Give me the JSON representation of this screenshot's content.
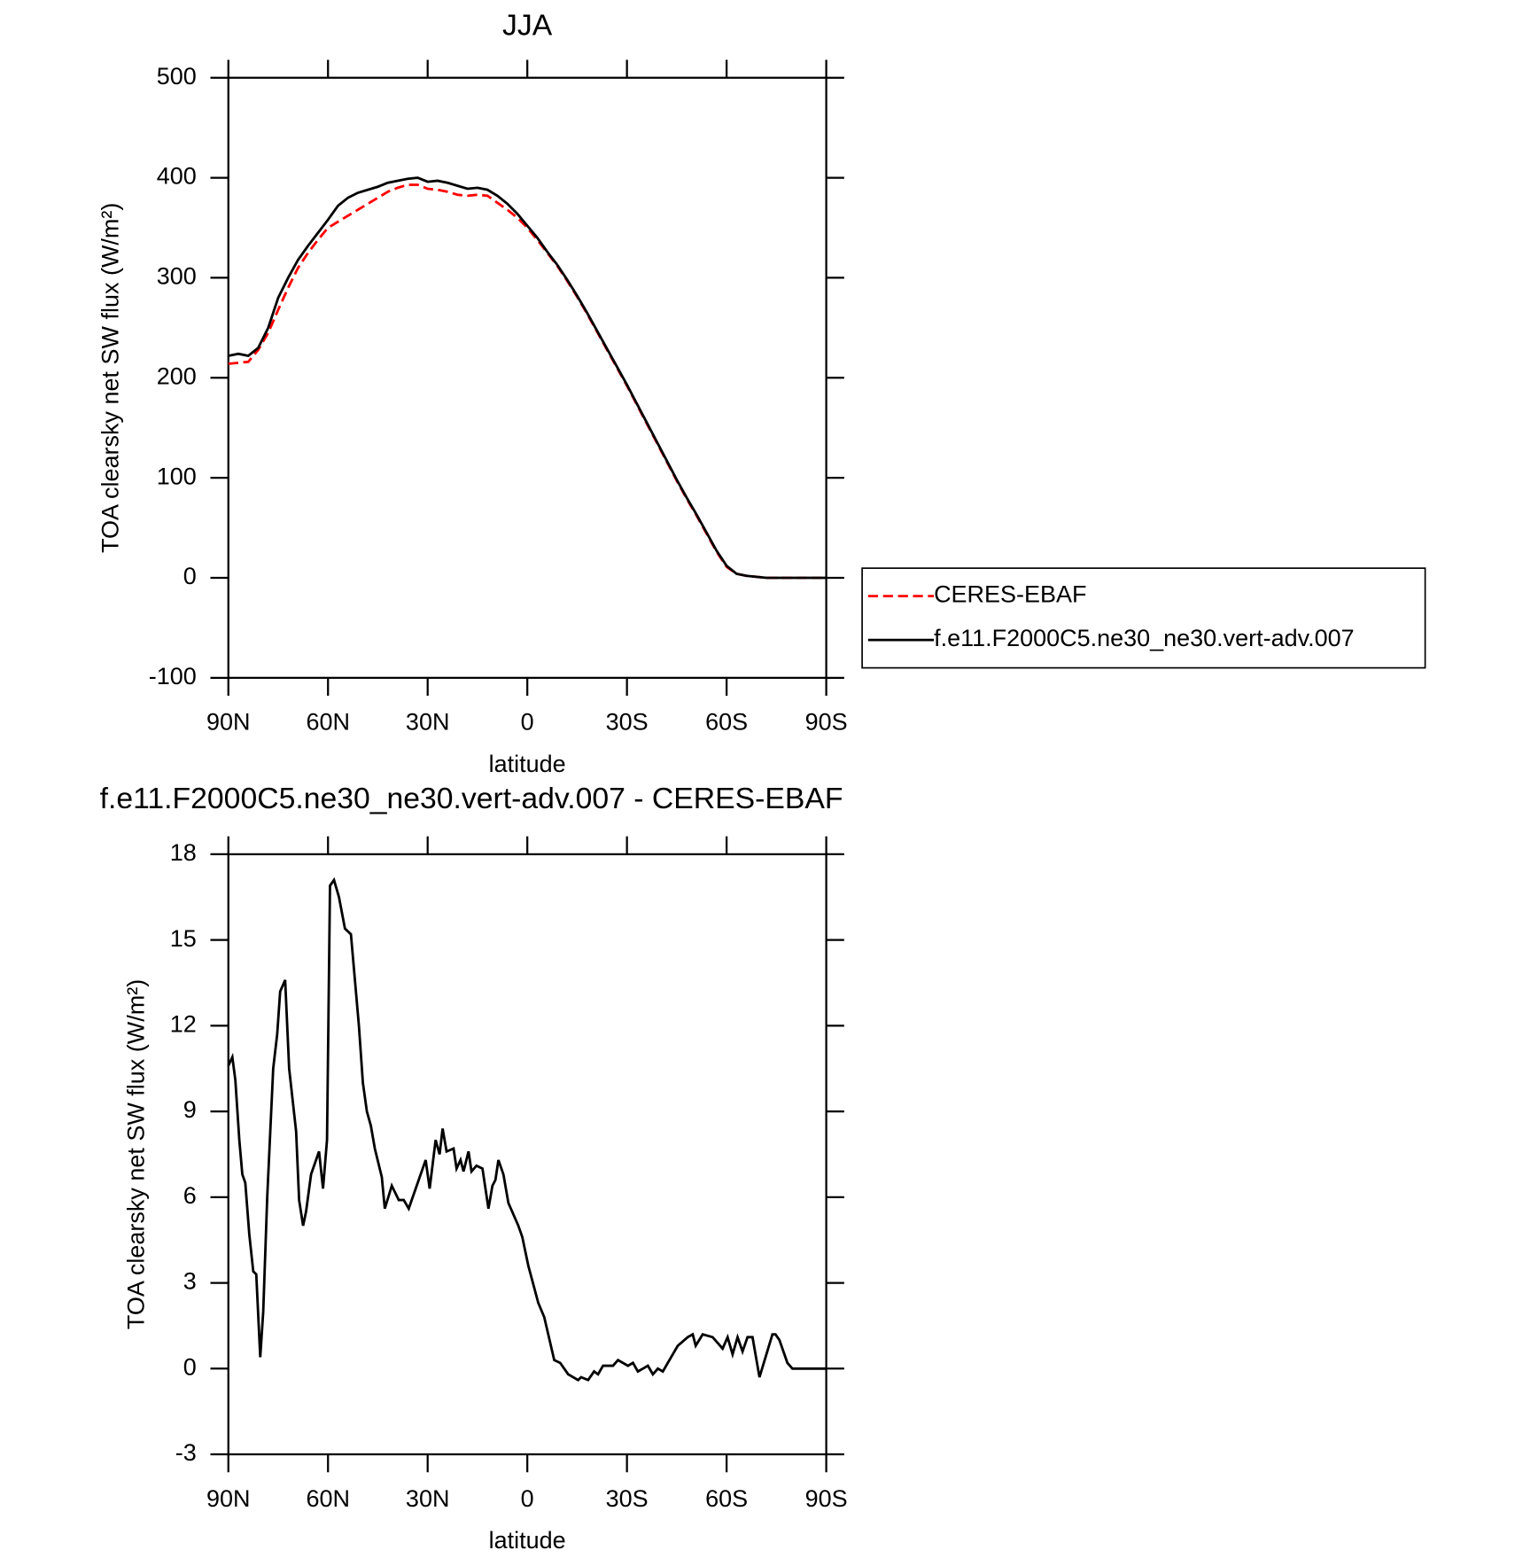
{
  "chart_data": [
    {
      "type": "line",
      "title": "JJA",
      "x_label": "latitude",
      "y_label": "TOA clearsky net SW flux (W/m²)",
      "xlim": [
        90,
        -90
      ],
      "ylim": [
        -100,
        500
      ],
      "xticks": [
        {
          "value": 90,
          "label": "90N"
        },
        {
          "value": 60,
          "label": "60N"
        },
        {
          "value": 30,
          "label": "30N"
        },
        0,
        {
          "value": -30,
          "label": "30S"
        },
        {
          "value": -60,
          "label": "60S"
        },
        {
          "value": -90,
          "label": "90S"
        }
      ],
      "yticks": [
        -100,
        0,
        100,
        200,
        300,
        400,
        500
      ],
      "legend": "right",
      "x": [
        90,
        87,
        84,
        81,
        78,
        75,
        72,
        69,
        66,
        63,
        60,
        57,
        54,
        51,
        48,
        45,
        42,
        39,
        36,
        33,
        30,
        27,
        24,
        21,
        18,
        15,
        12,
        9,
        6,
        3,
        0,
        -3,
        -6,
        -9,
        -12,
        -15,
        -18,
        -21,
        -24,
        -27,
        -30,
        -33,
        -36,
        -39,
        -42,
        -45,
        -48,
        -51,
        -54,
        -57,
        -60,
        -63,
        -66,
        -69,
        -72,
        -75,
        -78,
        -81,
        -84,
        -87,
        -90
      ],
      "series": [
        {
          "name": "CERES-EBAF",
          "color": "#ff0000",
          "style": "dashed",
          "values": [
            214,
            215,
            216,
            228,
            245,
            268,
            290,
            310,
            325,
            338,
            350,
            356,
            362,
            368,
            374,
            380,
            386,
            390,
            393,
            393,
            389,
            388,
            386,
            383,
            382,
            383,
            382,
            375,
            368,
            360,
            350,
            338,
            325,
            312,
            297,
            281,
            264,
            246,
            228,
            210,
            192,
            173,
            154,
            135,
            116,
            97,
            79,
            62,
            44,
            26,
            11,
            4,
            2,
            1,
            0,
            0,
            0,
            0,
            0,
            0,
            0
          ]
        },
        {
          "name": "f.e11.F2000C5.ne30_ne30.vert-adv.007",
          "color": "#000000",
          "style": "solid",
          "values": [
            222,
            224,
            222,
            230,
            250,
            280,
            300,
            318,
            332,
            345,
            358,
            372,
            380,
            385,
            388,
            391,
            395,
            397,
            399,
            400,
            396,
            397,
            395,
            392,
            389,
            390,
            388,
            382,
            374,
            364,
            352,
            340,
            326,
            313,
            298,
            282,
            265,
            247,
            229,
            211,
            193,
            174,
            155,
            136,
            117,
            98,
            80,
            63,
            45,
            27,
            12,
            4,
            2,
            1,
            0,
            0,
            0,
            0,
            0,
            0,
            0
          ]
        }
      ]
    },
    {
      "type": "line",
      "title": "f.e11.F2000C5.ne30_ne30.vert-adv.007 - CERES-EBAF",
      "x_label": "latitude",
      "y_label": "TOA clearsky net SW flux (W/m²)",
      "xlim": [
        90,
        -90
      ],
      "ylim": [
        -3,
        18
      ],
      "xticks": [
        {
          "value": 90,
          "label": "90N"
        },
        {
          "value": 60,
          "label": "60N"
        },
        {
          "value": 30,
          "label": "30N"
        },
        0,
        {
          "value": -30,
          "label": "30S"
        },
        {
          "value": -60,
          "label": "60S"
        },
        {
          "value": -90,
          "label": "90S"
        }
      ],
      "yticks": [
        -3,
        0,
        3,
        6,
        9,
        12,
        15,
        18
      ],
      "x": [
        90,
        88.8,
        87.9,
        86.7,
        85.8,
        84.9,
        83.7,
        82.5,
        81.6,
        80.4,
        79.5,
        78.3,
        76.5,
        75.3,
        74.4,
        72.9,
        71.7,
        69.6,
        68.7,
        67.5,
        66.6,
        65.1,
        62.7,
        61.5,
        60.3,
        59.4,
        58.2,
        56.7,
        54.9,
        53.1,
        50.7,
        49.5,
        48.3,
        47.1,
        45.9,
        43.8,
        42.9,
        40.8,
        38.7,
        37.2,
        35.7,
        32.7,
        30.6,
        29.4,
        27.6,
        26.4,
        25.5,
        24.3,
        22.2,
        21.3,
        20.1,
        19.2,
        17.7,
        16.8,
        15.3,
        13.5,
        11.7,
        10.5,
        9.6,
        8.7,
        7.2,
        5.7,
        2.7,
        1.5,
        -0.3,
        -3.3,
        -5.1,
        -6.3,
        -8.1,
        -9.9,
        -12.3,
        -15.3,
        -16.2,
        -18.3,
        -20.1,
        -21.3,
        -22.8,
        -25.8,
        -27.3,
        -30.3,
        -31.8,
        -33.3,
        -34.8,
        -36.3,
        -37.8,
        -39.3,
        -40.8,
        -42.3,
        -45.3,
        -48.3,
        -49.8,
        -50.7,
        -52.8,
        -55.8,
        -58.8,
        -60.3,
        -61.8,
        -63.3,
        -64.8,
        -66.3,
        -67.8,
        -69.9,
        -73.8,
        -74.7,
        -75.9,
        -78.3,
        -79.8,
        -90
      ],
      "color": "#000000",
      "values": [
        10.6,
        10.9,
        10.1,
        8.0,
        6.8,
        6.5,
        4.7,
        3.4,
        3.3,
        0.4,
        2.0,
        6.0,
        10.5,
        11.7,
        13.2,
        13.6,
        10.5,
        8.3,
        5.9,
        5.0,
        5.5,
        6.8,
        7.6,
        6.3,
        8.0,
        16.9,
        17.1,
        16.5,
        15.4,
        15.2,
        12.0,
        10.0,
        9.0,
        8.5,
        7.7,
        6.7,
        5.6,
        6.4,
        5.9,
        5.9,
        5.6,
        6.6,
        7.3,
        6.3,
        8.0,
        7.5,
        8.4,
        7.6,
        7.7,
        7.0,
        7.3,
        6.9,
        7.6,
        6.9,
        7.1,
        7.0,
        5.6,
        6.4,
        6.6,
        7.3,
        6.8,
        5.8,
        5.0,
        4.6,
        3.6,
        2.3,
        1.8,
        1.2,
        0.3,
        0.2,
        -0.2,
        -0.4,
        -0.3,
        -0.4,
        -0.1,
        -0.2,
        0.1,
        0.1,
        0.3,
        0.1,
        0.2,
        -0.1,
        0,
        0.1,
        -0.2,
        0,
        -0.1,
        0.2,
        0.8,
        1.1,
        1.2,
        0.8,
        1.2,
        1.1,
        0.7,
        1.1,
        0.5,
        1.1,
        0.6,
        1.1,
        1.1,
        -0.3,
        1.2,
        1.2,
        1.0,
        0.2,
        0,
        0
      ]
    }
  ]
}
